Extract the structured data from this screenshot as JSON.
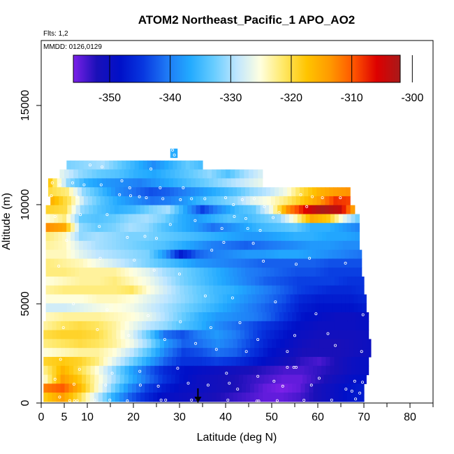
{
  "chart_data": {
    "type": "heatmap",
    "title": "ATOM2 Northeast_Pacific_1 APO_AO2",
    "annotations": [
      "Flts: 1,2",
      "MMDD: 0126,0129"
    ],
    "xlabel": "Latitude (deg N)",
    "ylabel": "Altitude (m)",
    "xlim": [
      0,
      85
    ],
    "ylim": [
      0,
      17500
    ],
    "x_ticks": [
      0,
      5,
      10,
      20,
      30,
      40,
      50,
      60,
      70,
      80
    ],
    "y_ticks": [
      0,
      5000,
      10000,
      15000
    ],
    "colorbar": {
      "range": [
        -356,
        -302
      ],
      "ticks": [
        -350,
        -340,
        -330,
        -320,
        -310,
        -300
      ],
      "colors": [
        "#7b20e8",
        "#1a10b8",
        "#0010c8",
        "#0838e0",
        "#1e78f5",
        "#22aaff",
        "#66ccff",
        "#bfe6ff",
        "#ffffe0",
        "#ffe866",
        "#ffc400",
        "#ff9900",
        "#ff5500",
        "#dd0000",
        "#a81a1a"
      ]
    },
    "marker": {
      "latitude": 34,
      "symbol": "arrow"
    },
    "layers": [
      {
        "alt": 12600,
        "lat_start": 28.0,
        "lat_end": 29.5,
        "values": [
          -336,
          -337
        ]
      },
      {
        "alt": 12000,
        "lat_start": 5.5,
        "lat_end": 35.0,
        "values": [
          -332,
          -331,
          -330,
          -333,
          -336,
          -339,
          -336,
          -333,
          -335
        ]
      },
      {
        "alt": 11550,
        "lat_start": 4.0,
        "lat_end": 48.0,
        "values": [
          -327,
          -331,
          -333,
          -334,
          -336,
          -337,
          -335,
          -333,
          -331,
          -334,
          -330,
          -327
        ]
      },
      {
        "alt": 11100,
        "lat_start": 1.5,
        "lat_end": 48.0,
        "values": [
          -318,
          -331,
          -336,
          -338,
          -339,
          -340,
          -338,
          -336,
          -334,
          -332,
          -330,
          -328,
          -326
        ]
      },
      {
        "alt": 10650,
        "lat_start": 1.5,
        "lat_end": 67.0,
        "values": [
          -320,
          -322,
          -331,
          -335,
          -339,
          -341,
          -343,
          -342,
          -340,
          -338,
          -336,
          -334,
          -331,
          -329,
          -326,
          -320,
          -316,
          -314,
          -313
        ]
      },
      {
        "alt": 10200,
        "lat_start": 2.0,
        "lat_end": 67.0,
        "values": [
          -316,
          -321,
          -330,
          -334,
          -337,
          -339,
          -341,
          -340,
          -338,
          -335,
          -333,
          -331,
          -327,
          -325,
          -322,
          -318,
          -314,
          -308,
          -309
        ]
      },
      {
        "alt": 9750,
        "lat_start": 1.0,
        "lat_end": 68.0,
        "values": [
          -319,
          -320,
          -331,
          -334,
          -336,
          -335,
          -332,
          -330,
          -337,
          -344,
          -339,
          -335,
          -333,
          -326,
          -313,
          -306,
          -302,
          -304,
          -317
        ]
      },
      {
        "alt": 9300,
        "lat_start": 1.0,
        "lat_end": 69.0,
        "values": [
          -325,
          -322,
          -333,
          -334,
          -333,
          -331,
          -330,
          -332,
          -336,
          -338,
          -336,
          -334,
          -335,
          -333,
          -331,
          -324,
          -315,
          -318,
          -327,
          -334
        ]
      },
      {
        "alt": 8850,
        "lat_start": 1.0,
        "lat_end": 69.0,
        "values": [
          -313,
          -315,
          -331,
          -333,
          -332,
          -330,
          -331,
          -334,
          -336,
          -338,
          -341,
          -339,
          -337,
          -335,
          -334,
          -333,
          -336,
          -336,
          -338,
          -340
        ]
      },
      {
        "alt": 8400,
        "lat_start": 1.0,
        "lat_end": 69.0,
        "values": [
          -322,
          -324,
          -331,
          -330,
          -331,
          -332,
          -332,
          -333,
          -334,
          -335,
          -336,
          -337,
          -338,
          -338,
          -337,
          -336,
          -336,
          -337,
          -337,
          -338
        ]
      },
      {
        "alt": 7950,
        "lat_start": 1.0,
        "lat_end": 69.0,
        "values": [
          -323,
          -324,
          -328,
          -330,
          -331,
          -332,
          -333,
          -334,
          -336,
          -338,
          -340,
          -341,
          -342,
          -341,
          -340,
          -339,
          -338,
          -338,
          -339,
          -339
        ]
      },
      {
        "alt": 7500,
        "lat_start": 1.0,
        "lat_end": 69.5,
        "values": [
          -324,
          -324,
          -327,
          -329,
          -330,
          -331,
          -332,
          -338,
          -347,
          -342,
          -340,
          -339,
          -338,
          -338,
          -337,
          -337,
          -338,
          -339,
          -340,
          -341
        ]
      },
      {
        "alt": 7050,
        "lat_start": 1.0,
        "lat_end": 69.5,
        "values": [
          -322,
          -323,
          -324,
          -326,
          -328,
          -330,
          -332,
          -334,
          -336,
          -338,
          -339,
          -340,
          -341,
          -342,
          -342,
          -342,
          -342,
          -343,
          -343,
          -343
        ]
      },
      {
        "alt": 6600,
        "lat_start": 1.0,
        "lat_end": 69.5,
        "values": [
          -322,
          -322,
          -323,
          -323,
          -323,
          -325,
          -327,
          -330,
          -332,
          -334,
          -336,
          -338,
          -340,
          -341,
          -342,
          -343,
          -343,
          -344,
          -344,
          -344
        ]
      },
      {
        "alt": 6150,
        "lat_start": 1.0,
        "lat_end": 70.0,
        "values": [
          -325,
          -324,
          -323,
          -323,
          -322,
          -324,
          -326,
          -329,
          -332,
          -334,
          -336,
          -338,
          -340,
          -342,
          -343,
          -344,
          -344,
          -344,
          -345,
          -345
        ]
      },
      {
        "alt": 5700,
        "lat_start": 1.0,
        "lat_end": 70.0,
        "values": [
          -323,
          -322,
          -322,
          -322,
          -322,
          -321,
          -325,
          -328,
          -331,
          -333,
          -335,
          -336,
          -338,
          -340,
          -342,
          -344,
          -345,
          -346,
          -346,
          -345
        ]
      },
      {
        "alt": 5250,
        "lat_start": 1.0,
        "lat_end": 70.5,
        "values": [
          -325,
          -325,
          -325,
          -324,
          -324,
          -325,
          -327,
          -329,
          -331,
          -333,
          -335,
          -337,
          -339,
          -341,
          -343,
          -346,
          -347,
          -347,
          -347,
          -346
        ]
      },
      {
        "alt": 4800,
        "lat_start": 1.0,
        "lat_end": 70.5,
        "values": [
          -328,
          -328,
          -327,
          -326,
          -325,
          -326,
          -328,
          -330,
          -332,
          -334,
          -336,
          -338,
          -340,
          -342,
          -344,
          -347,
          -348,
          -348,
          -348,
          -347
        ]
      },
      {
        "alt": 4350,
        "lat_start": 1.0,
        "lat_end": 71.0,
        "values": [
          -324,
          -323,
          -323,
          -323,
          -324,
          -325,
          -327,
          -330,
          -333,
          -336,
          -338,
          -339,
          -340,
          -342,
          -345,
          -348,
          -349,
          -350,
          -350,
          -349
        ]
      },
      {
        "alt": 3900,
        "lat_start": 0.5,
        "lat_end": 71.0,
        "values": [
          -323,
          -321,
          -320,
          -321,
          -323,
          -326,
          -329,
          -331,
          -334,
          -336,
          -339,
          -341,
          -343,
          -345,
          -347,
          -349,
          -350,
          -350,
          -350,
          -349
        ]
      },
      {
        "alt": 3450,
        "lat_start": 0.5,
        "lat_end": 71.0,
        "values": [
          -320,
          -319,
          -319,
          -320,
          -323,
          -327,
          -333,
          -341,
          -343,
          -340,
          -338,
          -340,
          -343,
          -346,
          -348,
          -350,
          -351,
          -351,
          -351,
          -350
        ]
      },
      {
        "alt": 3000,
        "lat_start": 0.5,
        "lat_end": 71.5,
        "values": [
          -322,
          -321,
          -320,
          -321,
          -323,
          -326,
          -331,
          -338,
          -342,
          -341,
          -339,
          -341,
          -344,
          -347,
          -349,
          -351,
          -352,
          -352,
          -351,
          -350
        ]
      },
      {
        "alt": 2550,
        "lat_start": 0.5,
        "lat_end": 71.5,
        "values": [
          -325,
          -324,
          -323,
          -323,
          -325,
          -329,
          -334,
          -340,
          -344,
          -343,
          -341,
          -342,
          -345,
          -348,
          -350,
          -352,
          -352,
          -352,
          -351,
          -350
        ]
      },
      {
        "alt": 2100,
        "lat_start": 0.5,
        "lat_end": 71.0,
        "values": [
          -319,
          -318,
          -319,
          -322,
          -327,
          -332,
          -337,
          -342,
          -345,
          -345,
          -344,
          -345,
          -347,
          -349,
          -351,
          -353,
          -354,
          -352,
          -350,
          -349
        ]
      },
      {
        "alt": 1650,
        "lat_start": 0.5,
        "lat_end": 71.0,
        "values": [
          -322,
          -316,
          -320,
          -325,
          -331,
          -337,
          -342,
          -346,
          -348,
          -349,
          -350,
          -351,
          -352,
          -353,
          -354,
          -354,
          -353,
          -352,
          -350,
          -349
        ]
      },
      {
        "alt": 1200,
        "lat_start": 0.5,
        "lat_end": 70.5,
        "values": [
          -324,
          -314,
          -318,
          -324,
          -330,
          -336,
          -341,
          -345,
          -348,
          -350,
          -351,
          -352,
          -353,
          -354,
          -355,
          -355,
          -353,
          -351,
          -349,
          -348
        ]
      },
      {
        "alt": 750,
        "lat_start": 0.5,
        "lat_end": 70.0,
        "values": [
          -312,
          -310,
          -316,
          -324,
          -332,
          -339,
          -344,
          -347,
          -349,
          -350,
          -351,
          -352,
          -353,
          -355,
          -356,
          -355,
          -352,
          -350,
          -348,
          -347
        ]
      },
      {
        "alt": 300,
        "lat_start": 0.5,
        "lat_end": 70.0,
        "values": [
          -318,
          -314,
          -320,
          -328,
          -336,
          -342,
          -346,
          -349,
          -350,
          -351,
          -352,
          -353,
          -354,
          -355,
          -355,
          -354,
          -352,
          -350,
          -348,
          -347
        ]
      }
    ],
    "sample_points": [
      [
        28.5,
        12750
      ],
      [
        28.9,
        12500
      ],
      [
        10.6,
        12000
      ],
      [
        13.2,
        11900
      ],
      [
        23.8,
        11800
      ],
      [
        17.5,
        11200
      ],
      [
        2.4,
        11100
      ],
      [
        4.1,
        11000
      ],
      [
        6.8,
        11100
      ],
      [
        9.3,
        11000
      ],
      [
        13.0,
        11000
      ],
      [
        19.2,
        10850
      ],
      [
        25.8,
        10850
      ],
      [
        30.8,
        10850
      ],
      [
        2.2,
        10450
      ],
      [
        7.8,
        10400
      ],
      [
        17.0,
        10500
      ],
      [
        19.4,
        10450
      ],
      [
        21.3,
        10400
      ],
      [
        22.8,
        10350
      ],
      [
        26.4,
        10300
      ],
      [
        30.2,
        10250
      ],
      [
        32.6,
        10300
      ],
      [
        35.5,
        10300
      ],
      [
        40.0,
        10350
      ],
      [
        43.6,
        10250
      ],
      [
        46.2,
        10300
      ],
      [
        56.3,
        10500
      ],
      [
        58.8,
        10400
      ],
      [
        61.0,
        10350
      ],
      [
        64.9,
        10350
      ],
      [
        41.7,
        10000
      ],
      [
        48.4,
        9900
      ],
      [
        51.6,
        9600
      ],
      [
        57.6,
        9900
      ],
      [
        3.0,
        9400
      ],
      [
        8.5,
        9500
      ],
      [
        14.3,
        9500
      ],
      [
        33.4,
        9200
      ],
      [
        41.9,
        9400
      ],
      [
        44.4,
        9300
      ],
      [
        50.3,
        9350
      ],
      [
        28.0,
        9000
      ],
      [
        39.2,
        8800
      ],
      [
        44.8,
        8800
      ],
      [
        47.5,
        8700
      ],
      [
        12.6,
        8900
      ],
      [
        18.7,
        8350
      ],
      [
        22.5,
        8400
      ],
      [
        25.0,
        8300
      ],
      [
        39.6,
        8100
      ],
      [
        5.5,
        8200
      ],
      [
        46.0,
        8050
      ],
      [
        37.0,
        7700
      ],
      [
        12.8,
        7300
      ],
      [
        20.2,
        7200
      ],
      [
        48.2,
        7150
      ],
      [
        55.3,
        7000
      ],
      [
        58.2,
        7300
      ],
      [
        66.0,
        7050
      ],
      [
        3.8,
        6900
      ],
      [
        24.5,
        6700
      ],
      [
        30.0,
        6500
      ],
      [
        35.6,
        5400
      ],
      [
        41.5,
        5300
      ],
      [
        50.8,
        5100
      ],
      [
        59.6,
        4500
      ],
      [
        7.0,
        5000
      ],
      [
        14.3,
        4700
      ],
      [
        23.2,
        4400
      ],
      [
        30.2,
        4100
      ],
      [
        36.8,
        3800
      ],
      [
        43.1,
        4050
      ],
      [
        47.0,
        3200
      ],
      [
        55.0,
        3400
      ],
      [
        62.2,
        3500
      ],
      [
        69.8,
        4450
      ],
      [
        4.8,
        3800
      ],
      [
        12.2,
        3700
      ],
      [
        19.0,
        3400
      ],
      [
        26.8,
        3200
      ],
      [
        33.5,
        3000
      ],
      [
        38.0,
        2700
      ],
      [
        44.5,
        2600
      ],
      [
        53.4,
        2600
      ],
      [
        63.8,
        2900
      ],
      [
        69.5,
        2600
      ],
      [
        4.2,
        2200
      ],
      [
        8.3,
        1700
      ],
      [
        15.4,
        1500
      ],
      [
        21.4,
        1600
      ],
      [
        29.6,
        1750
      ],
      [
        40.2,
        1500
      ],
      [
        47.0,
        1350
      ],
      [
        53.4,
        1800
      ],
      [
        54.8,
        1800
      ],
      [
        55.3,
        1800
      ],
      [
        60.3,
        1250
      ],
      [
        68.0,
        1100
      ],
      [
        69.7,
        1050
      ],
      [
        3.0,
        1200
      ],
      [
        7.1,
        950
      ],
      [
        14.0,
        900
      ],
      [
        21.5,
        900
      ],
      [
        25.4,
        850
      ],
      [
        31.9,
        1000
      ],
      [
        36.2,
        900
      ],
      [
        40.8,
        1000
      ],
      [
        42.6,
        700
      ],
      [
        50.5,
        1100
      ],
      [
        52.4,
        850
      ],
      [
        58.6,
        900
      ],
      [
        66.1,
        700
      ],
      [
        67.4,
        600
      ],
      [
        69.1,
        500
      ],
      [
        4.0,
        300
      ],
      [
        6.2,
        120
      ],
      [
        7.2,
        120
      ],
      [
        7.8,
        120
      ],
      [
        11.6,
        150
      ],
      [
        14.9,
        150
      ],
      [
        18.7,
        110
      ],
      [
        26.0,
        150
      ],
      [
        27.0,
        150
      ],
      [
        32.6,
        150
      ],
      [
        33.8,
        200
      ],
      [
        40.5,
        150
      ],
      [
        46.8,
        100
      ],
      [
        47.2,
        100
      ],
      [
        51.2,
        120
      ],
      [
        57.0,
        140
      ],
      [
        63.0,
        150
      ],
      [
        68.2,
        200
      ]
    ]
  }
}
